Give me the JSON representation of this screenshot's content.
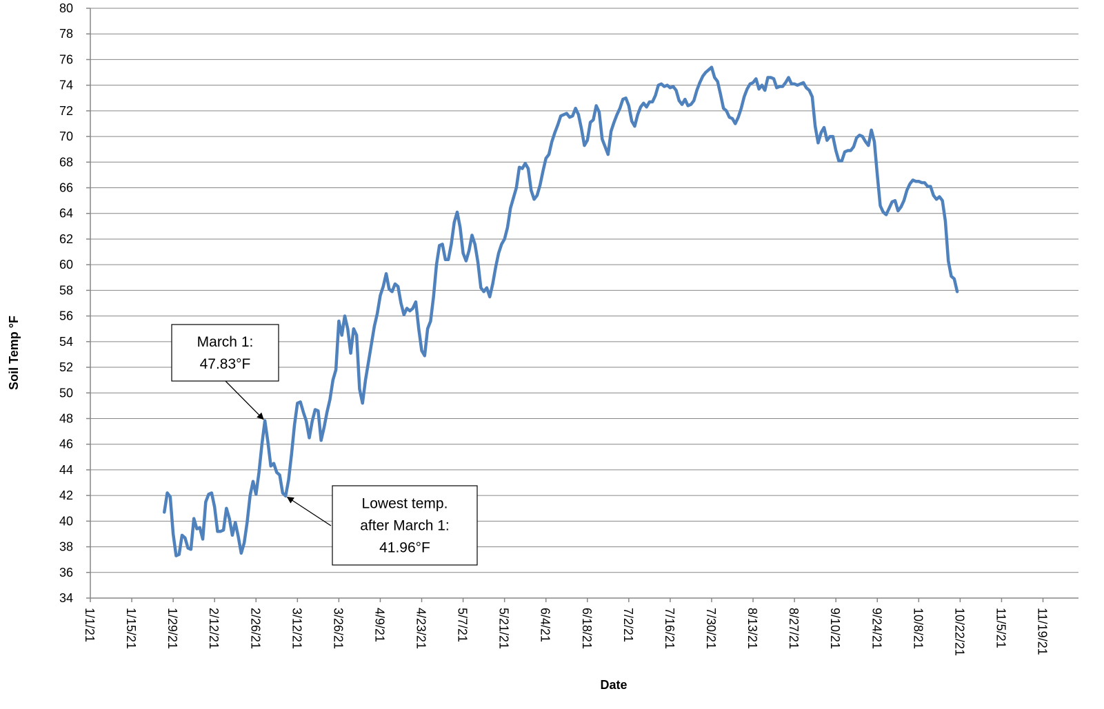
{
  "chart_data": {
    "type": "line",
    "y_label": "Soil Temp °F",
    "x_label": "Date",
    "color": "#4f81bd",
    "grid": true,
    "ylim": [
      34,
      80
    ],
    "yticks": [
      34,
      36,
      38,
      40,
      42,
      44,
      46,
      48,
      50,
      52,
      54,
      56,
      58,
      60,
      62,
      64,
      66,
      68,
      70,
      72,
      74,
      76,
      78,
      80
    ],
    "xlim": [
      "1/1/21",
      "12/1/21"
    ],
    "xticks": [
      "1/1/21",
      "1/15/21",
      "1/29/21",
      "2/12/21",
      "2/26/21",
      "3/12/21",
      "3/26/21",
      "4/9/21",
      "4/23/21",
      "5/7/21",
      "5/21/21",
      "6/4/21",
      "6/18/21",
      "7/2/21",
      "7/16/21",
      "7/30/21",
      "8/13/21",
      "8/27/21",
      "9/10/21",
      "9/24/21",
      "10/8/21",
      "10/22/21",
      "11/5/21",
      "11/19/21"
    ],
    "x": [
      "1/26/21",
      "1/27/21",
      "1/28/21",
      "1/29/21",
      "1/30/21",
      "1/31/21",
      "2/1/21",
      "2/2/21",
      "2/3/21",
      "2/4/21",
      "2/5/21",
      "2/6/21",
      "2/7/21",
      "2/8/21",
      "2/9/21",
      "2/10/21",
      "2/11/21",
      "2/12/21",
      "2/13/21",
      "2/14/21",
      "2/15/21",
      "2/16/21",
      "2/17/21",
      "2/18/21",
      "2/19/21",
      "2/20/21",
      "2/21/21",
      "2/22/21",
      "2/23/21",
      "2/24/21",
      "2/25/21",
      "2/26/21",
      "2/27/21",
      "2/28/21",
      "3/1/21",
      "3/2/21",
      "3/3/21",
      "3/4/21",
      "3/5/21",
      "3/6/21",
      "3/7/21",
      "3/8/21",
      "3/9/21",
      "3/10/21",
      "3/11/21",
      "3/12/21",
      "3/13/21",
      "3/14/21",
      "3/15/21",
      "3/16/21",
      "3/17/21",
      "3/18/21",
      "3/19/21",
      "3/20/21",
      "3/21/21",
      "3/22/21",
      "3/23/21",
      "3/24/21",
      "3/25/21",
      "3/26/21",
      "3/27/21",
      "3/28/21",
      "3/29/21",
      "3/30/21",
      "3/31/21",
      "4/1/21",
      "4/2/21",
      "4/3/21",
      "4/4/21",
      "4/5/21",
      "4/6/21",
      "4/7/21",
      "4/8/21",
      "4/9/21",
      "4/10/21",
      "4/11/21",
      "4/12/21",
      "4/13/21",
      "4/14/21",
      "4/15/21",
      "4/16/21",
      "4/17/21",
      "4/18/21",
      "4/19/21",
      "4/20/21",
      "4/21/21",
      "4/22/21",
      "4/23/21",
      "4/24/21",
      "4/25/21",
      "4/26/21",
      "4/27/21",
      "4/28/21",
      "4/29/21",
      "4/30/21",
      "5/1/21",
      "5/2/21",
      "5/3/21",
      "5/4/21",
      "5/5/21",
      "5/6/21",
      "5/7/21",
      "5/8/21",
      "5/9/21",
      "5/10/21",
      "5/11/21",
      "5/12/21",
      "5/13/21",
      "5/14/21",
      "5/15/21",
      "5/16/21",
      "5/17/21",
      "5/18/21",
      "5/19/21",
      "5/20/21",
      "5/21/21",
      "5/22/21",
      "5/23/21",
      "5/24/21",
      "5/25/21",
      "5/26/21",
      "5/27/21",
      "5/28/21",
      "5/29/21",
      "5/30/21",
      "5/31/21",
      "6/1/21",
      "6/2/21",
      "6/3/21",
      "6/4/21",
      "6/5/21",
      "6/6/21",
      "6/7/21",
      "6/8/21",
      "6/9/21",
      "6/10/21",
      "6/11/21",
      "6/12/21",
      "6/13/21",
      "6/14/21",
      "6/15/21",
      "6/16/21",
      "6/17/21",
      "6/18/21",
      "6/19/21",
      "6/20/21",
      "6/21/21",
      "6/22/21",
      "6/23/21",
      "6/24/21",
      "6/25/21",
      "6/26/21",
      "6/27/21",
      "6/28/21",
      "6/29/21",
      "6/30/21",
      "7/1/21",
      "7/2/21",
      "7/3/21",
      "7/4/21",
      "7/5/21",
      "7/6/21",
      "7/7/21",
      "7/8/21",
      "7/9/21",
      "7/10/21",
      "7/11/21",
      "7/12/21",
      "7/13/21",
      "7/14/21",
      "7/15/21",
      "7/16/21",
      "7/17/21",
      "7/18/21",
      "7/19/21",
      "7/20/21",
      "7/21/21",
      "7/22/21",
      "7/23/21",
      "7/24/21",
      "7/25/21",
      "7/26/21",
      "7/27/21",
      "7/28/21",
      "7/29/21",
      "7/30/21",
      "7/31/21",
      "8/1/21",
      "8/2/21",
      "8/3/21",
      "8/4/21",
      "8/5/21",
      "8/6/21",
      "8/7/21",
      "8/8/21",
      "8/9/21",
      "8/10/21",
      "8/11/21",
      "8/12/21",
      "8/13/21",
      "8/14/21",
      "8/15/21",
      "8/16/21",
      "8/17/21",
      "8/18/21",
      "8/19/21",
      "8/20/21",
      "8/21/21",
      "8/22/21",
      "8/23/21",
      "8/24/21",
      "8/25/21",
      "8/26/21",
      "8/27/21",
      "8/28/21",
      "8/29/21",
      "8/30/21",
      "8/31/21",
      "9/1/21",
      "9/2/21",
      "9/3/21",
      "9/4/21",
      "9/5/21",
      "9/6/21",
      "9/7/21",
      "9/8/21",
      "9/9/21",
      "9/10/21",
      "9/11/21",
      "9/12/21",
      "9/13/21",
      "9/14/21",
      "9/15/21",
      "9/16/21",
      "9/17/21",
      "9/18/21",
      "9/19/21",
      "9/20/21",
      "9/21/21",
      "9/22/21",
      "9/23/21",
      "9/24/21",
      "9/25/21",
      "9/26/21",
      "9/27/21",
      "9/28/21",
      "9/29/21",
      "9/30/21",
      "10/1/21",
      "10/2/21",
      "10/3/21",
      "10/4/21",
      "10/5/21",
      "10/6/21",
      "10/7/21",
      "10/8/21",
      "10/9/21",
      "10/10/21",
      "10/11/21",
      "10/12/21",
      "10/13/21",
      "10/14/21",
      "10/15/21",
      "10/16/21",
      "10/17/21",
      "10/18/21",
      "10/19/21",
      "10/20/21",
      "10/21/21"
    ],
    "values": [
      40.7,
      42.2,
      41.9,
      39,
      37.3,
      37.4,
      38.9,
      38.7,
      37.9,
      37.8,
      40.2,
      39.4,
      39.5,
      38.6,
      41.5,
      42.1,
      42.2,
      41.1,
      39.2,
      39.2,
      39.3,
      41,
      40.2,
      38.9,
      39.9,
      38.8,
      37.5,
      38.3,
      39.9,
      42,
      43.1,
      42.1,
      43.8,
      46,
      47.83,
      46.2,
      44.3,
      44.5,
      43.8,
      43.6,
      42.2,
      41.96,
      43.2,
      45.2,
      47.5,
      49.2,
      49.3,
      48.5,
      47.8,
      46.5,
      47.8,
      48.7,
      48.6,
      46.3,
      47.3,
      48.5,
      49.5,
      51,
      51.8,
      55.6,
      54.5,
      56,
      55,
      53.1,
      55,
      54.5,
      50.3,
      49.2,
      51,
      52.4,
      53.8,
      55.2,
      56.2,
      57.6,
      58.3,
      59.3,
      58.1,
      57.9,
      58.5,
      58.3,
      57,
      56.1,
      56.6,
      56.4,
      56.6,
      57.1,
      55,
      53.3,
      52.9,
      55,
      55.6,
      57.5,
      60,
      61.5,
      61.6,
      60.4,
      60.4,
      61.6,
      63.3,
      64.1,
      62.9,
      60.9,
      60.3,
      61.1,
      62.3,
      61.6,
      60.2,
      58.2,
      57.9,
      58.2,
      57.5,
      58.5,
      59.8,
      60.9,
      61.6,
      62,
      62.9,
      64.4,
      65.2,
      66,
      67.6,
      67.5,
      67.9,
      67.5,
      65.8,
      65.1,
      65.4,
      66.2,
      67.3,
      68.3,
      68.6,
      69.6,
      70.3,
      70.9,
      71.6,
      71.7,
      71.8,
      71.5,
      71.6,
      72.2,
      71.7,
      70.6,
      69.3,
      69.7,
      71.1,
      71.3,
      72.4,
      71.9,
      69.8,
      69.2,
      68.6,
      70.4,
      71.1,
      71.7,
      72.2,
      72.9,
      73,
      72.4,
      71.2,
      70.8,
      71.7,
      72.3,
      72.6,
      72.3,
      72.7,
      72.7,
      73.2,
      74,
      74.1,
      73.9,
      74,
      73.8,
      73.9,
      73.6,
      72.8,
      72.5,
      72.9,
      72.4,
      72.5,
      72.8,
      73.6,
      74.2,
      74.7,
      75,
      75.2,
      75.4,
      74.6,
      74.3,
      73.3,
      72.2,
      72,
      71.5,
      71.4,
      71,
      71.5,
      72.2,
      73.1,
      73.7,
      74.1,
      74.2,
      74.5,
      73.7,
      74,
      73.6,
      74.6,
      74.6,
      74.5,
      73.8,
      73.9,
      73.9,
      74.2,
      74.6,
      74.1,
      74.1,
      74,
      74.1,
      74.2,
      73.8,
      73.6,
      73.1,
      70.8,
      69.5,
      70.3,
      70.7,
      69.7,
      70,
      70,
      68.9,
      68.1,
      68.1,
      68.8,
      68.9,
      68.9,
      69.2,
      69.9,
      70.1,
      70,
      69.6,
      69.3,
      70.5,
      69.6,
      67,
      64.6,
      64.1,
      63.9,
      64.4,
      64.9,
      65,
      64.2,
      64.5,
      65,
      65.8,
      66.3,
      66.6,
      66.5,
      66.5,
      66.4,
      66.4,
      66.1,
      66.1,
      65.4,
      65.1,
      65.3,
      65,
      63.4,
      60.3,
      59.1,
      58.9,
      57.9
    ],
    "annotations": [
      {
        "lines": [
          "March 1:",
          "47.83°F"
        ],
        "x": "3/1/21",
        "y": 47.83
      },
      {
        "lines": [
          "Lowest temp.",
          "after March 1:",
          "41.96°F"
        ],
        "x": "3/8/21",
        "y": 41.96
      }
    ]
  }
}
